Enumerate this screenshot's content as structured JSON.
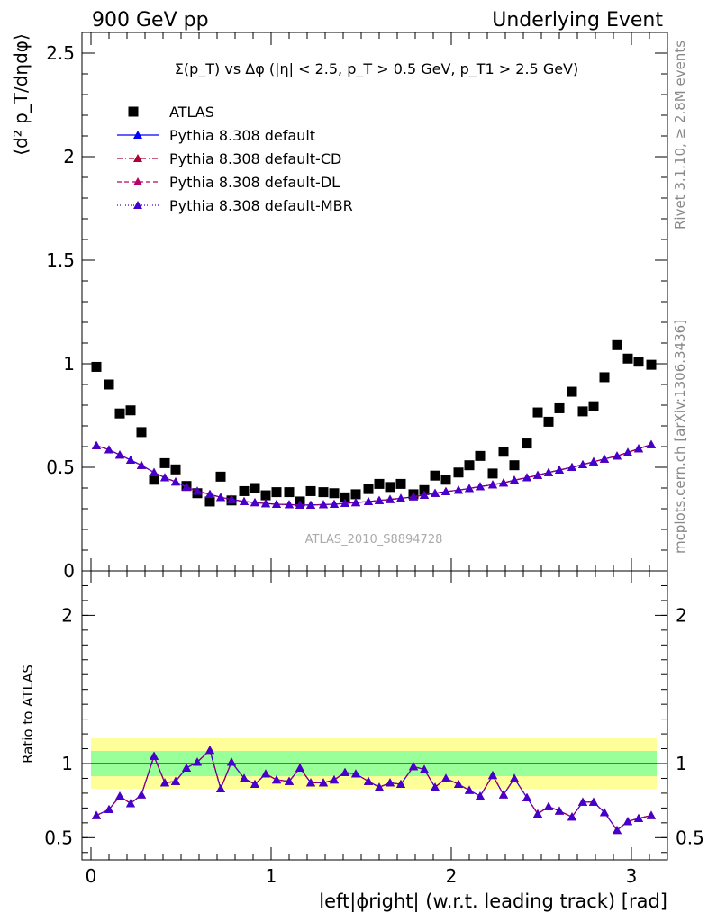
{
  "header": {
    "left": "900 GeV pp",
    "right": "Underlying Event"
  },
  "side_labels": {
    "rivet": "Rivet 3.1.10, ≥ 2.8M events",
    "mcplots": "mcplots.cern.ch [arXiv:1306.3436]"
  },
  "chart_data": [
    {
      "type": "scatter",
      "panel": "main",
      "title": "Σ(p_T) vs Δφ (|η| < 2.5, p_T > 0.5 GeV, p_T1 > 2.5 GeV)",
      "ylabel": "⟨d² p_T/dηdφ⟩",
      "watermark": "ATLAS_2010_S8894728",
      "xlim": [
        -0.05,
        3.2
      ],
      "ylim": [
        0,
        2.6
      ],
      "yticks": [
        0,
        0.5,
        1,
        1.5,
        2,
        2.5
      ],
      "ytick_labels": [
        "0",
        "0.5",
        "1",
        "1.5",
        "2",
        "2.5"
      ],
      "legend_placement": "top-left",
      "x": [
        0.03,
        0.1,
        0.16,
        0.22,
        0.28,
        0.35,
        0.41,
        0.47,
        0.53,
        0.59,
        0.66,
        0.72,
        0.78,
        0.85,
        0.91,
        0.97,
        1.03,
        1.1,
        1.16,
        1.22,
        1.29,
        1.35,
        1.41,
        1.47,
        1.54,
        1.6,
        1.66,
        1.72,
        1.79,
        1.85,
        1.91,
        1.97,
        2.04,
        2.1,
        2.16,
        2.23,
        2.29,
        2.35,
        2.42,
        2.48,
        2.54,
        2.6,
        2.67,
        2.73,
        2.79,
        2.85,
        2.92,
        2.98,
        3.04,
        3.11
      ],
      "series": [
        {
          "name": "ATLAS",
          "color": "#000000",
          "marker": "square",
          "values": [
            0.985,
            0.9,
            0.76,
            0.775,
            0.67,
            0.44,
            0.52,
            0.49,
            0.41,
            0.375,
            0.335,
            0.455,
            0.34,
            0.385,
            0.4,
            0.365,
            0.38,
            0.38,
            0.335,
            0.385,
            0.38,
            0.375,
            0.355,
            0.37,
            0.395,
            0.42,
            0.405,
            0.42,
            0.37,
            0.39,
            0.46,
            0.44,
            0.475,
            0.51,
            0.555,
            0.47,
            0.575,
            0.51,
            0.615,
            0.765,
            0.72,
            0.785,
            0.865,
            0.77,
            0.795,
            0.935,
            1.09,
            1.025,
            1.01,
            0.995
          ]
        },
        {
          "name": "Pythia 8.308 default",
          "color": "#0000ff",
          "marker": "triangle",
          "line": "solid",
          "values": [
            0.605,
            0.585,
            0.56,
            0.535,
            0.51,
            0.475,
            0.45,
            0.43,
            0.405,
            0.385,
            0.37,
            0.355,
            0.345,
            0.335,
            0.33,
            0.325,
            0.322,
            0.32,
            0.318,
            0.318,
            0.32,
            0.322,
            0.326,
            0.33,
            0.335,
            0.34,
            0.345,
            0.35,
            0.358,
            0.366,
            0.375,
            0.383,
            0.39,
            0.398,
            0.407,
            0.416,
            0.425,
            0.438,
            0.45,
            0.462,
            0.475,
            0.487,
            0.5,
            0.513,
            0.527,
            0.54,
            0.555,
            0.572,
            0.59,
            0.61
          ]
        },
        {
          "name": "Pythia 8.308 default-CD",
          "color": "#aa0033",
          "marker": "triangle",
          "line": "dashdot",
          "values": [
            0.605,
            0.585,
            0.56,
            0.535,
            0.51,
            0.475,
            0.45,
            0.43,
            0.405,
            0.385,
            0.37,
            0.355,
            0.345,
            0.335,
            0.33,
            0.325,
            0.322,
            0.32,
            0.318,
            0.318,
            0.32,
            0.322,
            0.326,
            0.33,
            0.335,
            0.34,
            0.345,
            0.35,
            0.358,
            0.366,
            0.375,
            0.383,
            0.39,
            0.398,
            0.407,
            0.416,
            0.425,
            0.438,
            0.45,
            0.462,
            0.475,
            0.487,
            0.5,
            0.513,
            0.527,
            0.54,
            0.555,
            0.572,
            0.59,
            0.61
          ]
        },
        {
          "name": "Pythia 8.308 default-DL",
          "color": "#bb0066",
          "marker": "triangle",
          "line": "dashed",
          "values": [
            0.605,
            0.585,
            0.56,
            0.535,
            0.51,
            0.475,
            0.45,
            0.43,
            0.405,
            0.385,
            0.37,
            0.355,
            0.345,
            0.335,
            0.33,
            0.325,
            0.322,
            0.32,
            0.318,
            0.318,
            0.32,
            0.322,
            0.326,
            0.33,
            0.335,
            0.34,
            0.345,
            0.35,
            0.358,
            0.366,
            0.375,
            0.383,
            0.39,
            0.398,
            0.407,
            0.416,
            0.425,
            0.438,
            0.45,
            0.462,
            0.475,
            0.487,
            0.5,
            0.513,
            0.527,
            0.54,
            0.555,
            0.572,
            0.59,
            0.61
          ]
        },
        {
          "name": "Pythia 8.308 default-MBR",
          "color": "#4400cc",
          "marker": "triangle",
          "line": "dotted",
          "values": [
            0.605,
            0.585,
            0.56,
            0.535,
            0.51,
            0.475,
            0.45,
            0.43,
            0.405,
            0.385,
            0.37,
            0.355,
            0.345,
            0.335,
            0.33,
            0.325,
            0.322,
            0.32,
            0.318,
            0.318,
            0.32,
            0.322,
            0.326,
            0.33,
            0.335,
            0.34,
            0.345,
            0.35,
            0.358,
            0.366,
            0.375,
            0.383,
            0.39,
            0.398,
            0.407,
            0.416,
            0.425,
            0.438,
            0.45,
            0.462,
            0.475,
            0.487,
            0.5,
            0.513,
            0.527,
            0.54,
            0.555,
            0.572,
            0.59,
            0.61
          ]
        }
      ]
    },
    {
      "type": "line",
      "panel": "ratio",
      "ylabel": "Ratio to ATLAS",
      "xlabel": "left|ϕright| (w.r.t. leading track) [rad]",
      "xlim": [
        -0.05,
        3.2
      ],
      "ylim": [
        0.35,
        2.3
      ],
      "xticks": [
        0,
        1,
        2,
        3
      ],
      "xtick_labels": [
        "0",
        "1",
        "2",
        "3"
      ],
      "yticks": [
        0.5,
        1,
        2
      ],
      "ytick_labels": [
        "0.5",
        "1",
        "2"
      ],
      "reference_line": 1,
      "bands": [
        {
          "color": "#ffff99",
          "half_width": 0.17
        },
        {
          "color": "#99ff99",
          "half_width": 0.085
        }
      ],
      "x": [
        0.03,
        0.1,
        0.16,
        0.22,
        0.28,
        0.35,
        0.41,
        0.47,
        0.53,
        0.59,
        0.66,
        0.72,
        0.78,
        0.85,
        0.91,
        0.97,
        1.03,
        1.1,
        1.16,
        1.22,
        1.29,
        1.35,
        1.41,
        1.47,
        1.54,
        1.6,
        1.66,
        1.72,
        1.79,
        1.85,
        1.91,
        1.97,
        2.04,
        2.1,
        2.16,
        2.23,
        2.29,
        2.35,
        2.42,
        2.48,
        2.54,
        2.6,
        2.67,
        2.73,
        2.79,
        2.85,
        2.92,
        2.98,
        3.04,
        3.11
      ],
      "series": [
        {
          "name": "Pythia 8.308 default",
          "color": "#0000ff",
          "values": [
            0.65,
            0.69,
            0.78,
            0.73,
            0.79,
            1.05,
            0.87,
            0.88,
            0.97,
            1.01,
            1.09,
            0.83,
            1.01,
            0.9,
            0.86,
            0.93,
            0.89,
            0.88,
            0.97,
            0.87,
            0.87,
            0.89,
            0.94,
            0.93,
            0.88,
            0.84,
            0.87,
            0.86,
            0.98,
            0.96,
            0.84,
            0.9,
            0.86,
            0.82,
            0.78,
            0.92,
            0.79,
            0.9,
            0.77,
            0.66,
            0.71,
            0.68,
            0.64,
            0.74,
            0.74,
            0.67,
            0.55,
            0.61,
            0.63,
            0.65
          ]
        }
      ]
    }
  ]
}
